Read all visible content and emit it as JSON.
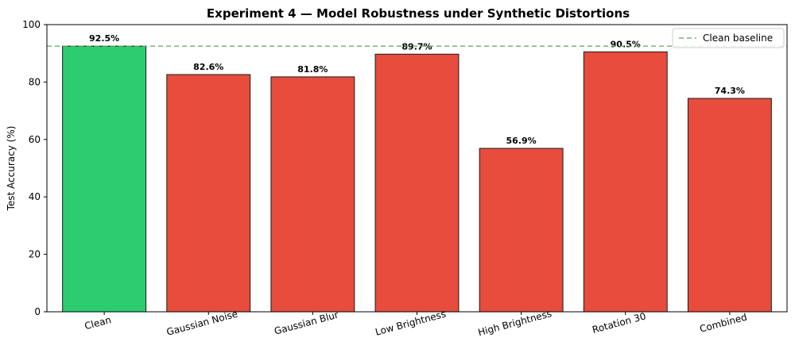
{
  "chart_data": {
    "type": "bar",
    "title": "Experiment 4 — Model Robustness under Synthetic Distortions",
    "xlabel": "",
    "ylabel": "Test Accuracy (%)",
    "ylim": [
      0,
      100
    ],
    "yticks": [
      0,
      20,
      40,
      60,
      80,
      100
    ],
    "grid": false,
    "categories": [
      "Clean",
      "Gaussian Noise",
      "Gaussian Blur",
      "Low Brightness",
      "High Brightness",
      "Rotation 30",
      "Combined"
    ],
    "values": [
      92.5,
      82.6,
      81.8,
      89.7,
      56.9,
      90.5,
      74.3
    ],
    "data_labels": [
      "92.5%",
      "82.6%",
      "81.8%",
      "89.7%",
      "56.9%",
      "90.5%",
      "74.3%"
    ],
    "bar_colors": [
      "#2ecc71",
      "#e74c3c",
      "#e74c3c",
      "#e74c3c",
      "#e74c3c",
      "#e74c3c",
      "#e74c3c"
    ],
    "baseline": {
      "label": "Clean baseline",
      "value": 92.5,
      "color": "#5aa85a",
      "style": "dashed"
    },
    "legend": {
      "placement": "top-right",
      "entries": [
        "Clean baseline"
      ]
    }
  }
}
